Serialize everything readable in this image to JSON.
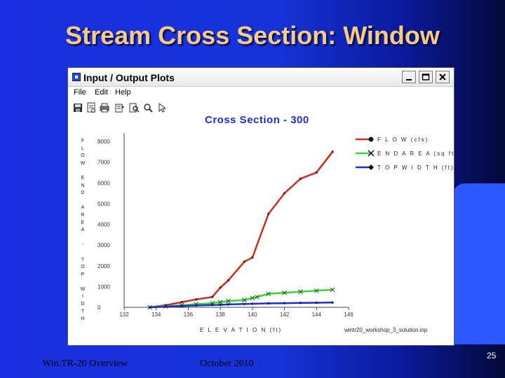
{
  "slide": {
    "title": "Stream Cross Section: Window",
    "footer_left": "Win.TR-20 Overview",
    "footer_center": "October 2010",
    "page_number": "25"
  },
  "window": {
    "title": "Input / Output Plots",
    "menu": [
      "File",
      "Edit",
      "Help"
    ],
    "toolbar_icons": [
      "save-icon",
      "print-preview-icon",
      "print-icon",
      "settings-icon",
      "search-icon",
      "zoom-icon",
      "pointer-icon"
    ]
  },
  "colors": {
    "flow": "#d42a1e",
    "end_area": "#37d53a",
    "top_width": "#1a2fd0"
  },
  "chart_data": {
    "type": "line",
    "title": "Cross Section - 300",
    "xlabel": "E L E V A T I O N (ft)",
    "ylabel_letters": [
      "F",
      "L",
      "O",
      "W",
      "",
      "E",
      "N",
      "D",
      "",
      "A",
      "R",
      "E",
      "A",
      "",
      "-",
      "",
      "T",
      "O",
      "P",
      "",
      "W",
      "I",
      "D",
      "T",
      "H"
    ],
    "x_ticks": [
      "132",
      "134",
      "136",
      "138",
      "140",
      "142",
      "144",
      "146"
    ],
    "y_ticks": [
      "0",
      "1000",
      "2000",
      "3000",
      "4000",
      "5000",
      "6000",
      "7000",
      "8000"
    ],
    "xlim": [
      132,
      146
    ],
    "ylim": [
      0,
      8000
    ],
    "grid": false,
    "legend_position": "top-right",
    "file_name": "wintr20_workshop_3_solution.inp",
    "series": [
      {
        "name": "F L O W (cfs)",
        "key": "flow",
        "marker": "circle",
        "x": [
          133.6,
          134.6,
          135.6,
          136.5,
          137.5,
          138.0,
          138.5,
          139.5,
          140.0,
          141.0,
          142.0,
          143.0,
          144.0,
          145.0
        ],
        "y": [
          0,
          100,
          250,
          380,
          500,
          950,
          1300,
          2200,
          2400,
          4500,
          5500,
          6200,
          6500,
          7500
        ]
      },
      {
        "name": "E N D   A R E A (sq ft)",
        "key": "end_area",
        "marker": "x",
        "x": [
          133.6,
          134.6,
          135.6,
          136.5,
          137.5,
          138.0,
          138.5,
          139.5,
          140.0,
          140.3,
          141.0,
          142.0,
          143.0,
          144.0,
          145.0
        ],
        "y": [
          0,
          50,
          100,
          150,
          200,
          250,
          300,
          350,
          450,
          500,
          650,
          700,
          750,
          800,
          850
        ]
      },
      {
        "name": "T O P   W I D T H (ft)",
        "key": "top_width",
        "marker": "diamond",
        "x": [
          133.6,
          134.6,
          135.6,
          136.5,
          137.5,
          138.0,
          138.5,
          139.5,
          140.0,
          141.0,
          142.0,
          143.0,
          144.0,
          145.0
        ],
        "y": [
          0,
          30,
          60,
          90,
          110,
          120,
          140,
          160,
          170,
          190,
          200,
          210,
          220,
          230
        ]
      }
    ]
  }
}
